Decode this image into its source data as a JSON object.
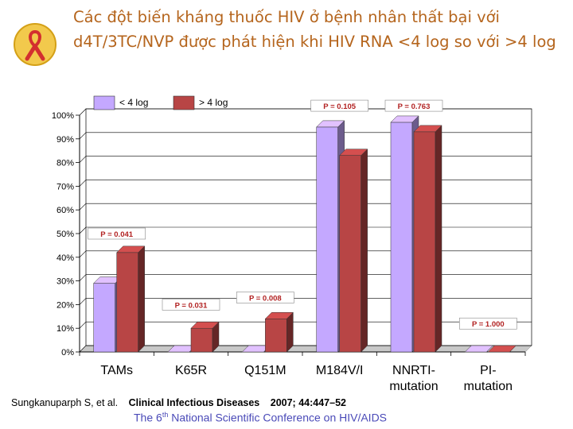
{
  "slide": {
    "title": "Các đột biến kháng thuốc HIV ở bệnh nhân thất bại với d4T/3TC/NVP được phát hiện khi HIV RNA <4 log so với >4 log"
  },
  "citation": {
    "author": "Sungkanuparph S, et al.",
    "journal": "Clinical Infectious Diseases",
    "ref": "2007; 44:447–52"
  },
  "footer": {
    "pre": "The 6",
    "sup": "th",
    "post": " National Scientific Conference on HIV/AIDS"
  },
  "colors": {
    "title": "#b5651d",
    "series_low": "#c4a8ff",
    "series_high": "#b84545",
    "pvalue": "#b22222",
    "footer": "#4a4ab8"
  },
  "chart_data": {
    "type": "bar",
    "title": "",
    "xlabel": "",
    "ylabel": "",
    "ylim": [
      0,
      100
    ],
    "y_ticks": [
      "0%",
      "10%",
      "20%",
      "30%",
      "40%",
      "50%",
      "60%",
      "70%",
      "80%",
      "90%",
      "100%"
    ],
    "grid": true,
    "legend": "top-left",
    "categories": [
      [
        "TAMs"
      ],
      [
        "K65R"
      ],
      [
        "Q151M"
      ],
      [
        "M184V/I"
      ],
      [
        "NNRTI-",
        "mutation"
      ],
      [
        "PI-",
        "mutation"
      ]
    ],
    "series": [
      {
        "name": "< 4 log",
        "values": [
          29,
          0,
          0,
          95,
          97,
          0
        ]
      },
      {
        "name": "> 4 log",
        "values": [
          42,
          10,
          14,
          83,
          93,
          0
        ]
      }
    ],
    "annotations": [
      {
        "category": "TAMs",
        "value": 50,
        "text": "P = 0.041"
      },
      {
        "category": "K65R",
        "value": 20,
        "text": "P = 0.031"
      },
      {
        "category": "Q151M",
        "value": 23,
        "text": "P = 0.008"
      },
      {
        "category": "M184V/I",
        "value": 104,
        "text": "P = 0.105"
      },
      {
        "category": "NNRTI-mutation",
        "value": 104,
        "text": "P = 0.763"
      },
      {
        "category": "PI-mutation",
        "value": 12,
        "text": "P = 1.000"
      }
    ]
  }
}
